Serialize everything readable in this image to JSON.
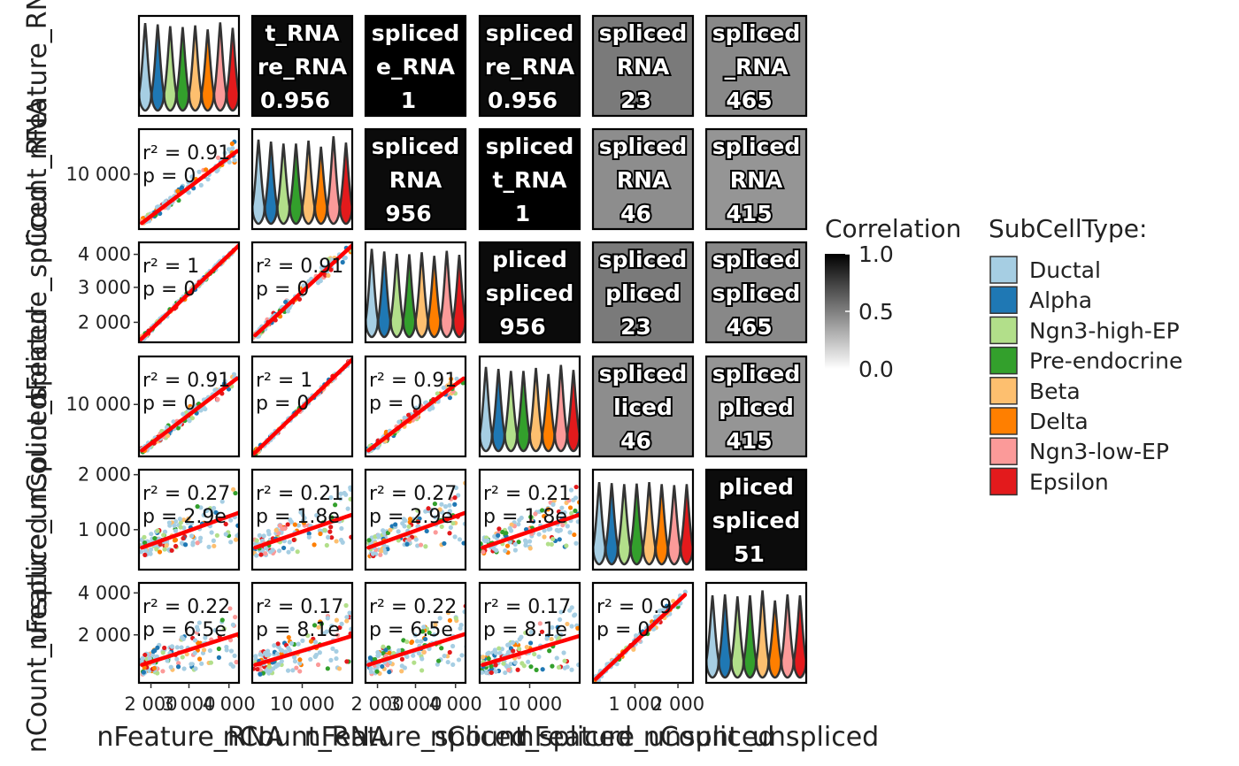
{
  "variables": [
    "nFeature_RNA",
    "nCount_RNA",
    "nFeature_spliced",
    "nCount_spliced",
    "nFeature_unspliced",
    "nCount_unspliced"
  ],
  "x_axis_titles": [
    "nFeature_RNA",
    "nCount_RNA",
    "nFeature_spliced",
    "nCount_spliced",
    "nFeature_unspliced",
    "nCount_unspliced"
  ],
  "y_axis_titles": [
    "nFeature_RNA",
    "nCount_RNA",
    "nFeature_spliced",
    "nCount_spliced",
    "nFeature_unspliced",
    "nCount_unspliced"
  ],
  "y_tick_labels": [
    [],
    [
      "10 000"
    ],
    [
      "4 000",
      "3 000",
      "2 000"
    ],
    [
      "10 000"
    ],
    [
      "2 000",
      "1 000"
    ],
    [
      "4 000",
      "2 000"
    ]
  ],
  "x_tick_labels": [
    [
      "2 000",
      "3 000",
      "4 000"
    ],
    [
      "10 000"
    ],
    [
      "2 000",
      "3 000",
      "4 000"
    ],
    [
      "10 000"
    ],
    [
      "1 000",
      "2 000"
    ],
    []
  ],
  "colors": {
    "fit_line": "#FF0000",
    "violin_outline": "#333333",
    "panel_border": "#000000"
  },
  "legend": {
    "correlation_title": "Correlation",
    "correlation_ticks": [
      "1.0",
      "0.5",
      "0.0"
    ],
    "subcelltype_title": "SubCellType:",
    "groups": [
      {
        "name": "Ductal",
        "color": "#A6CEE3"
      },
      {
        "name": "Alpha",
        "color": "#1F78B4"
      },
      {
        "name": "Ngn3-high-EP",
        "color": "#B2DF8A"
      },
      {
        "name": "Pre-endocrine",
        "color": "#33A02C"
      },
      {
        "name": "Beta",
        "color": "#FDBF6F"
      },
      {
        "name": "Delta",
        "color": "#FF7F00"
      },
      {
        "name": "Ngn3-low-EP",
        "color": "#FB9A99"
      },
      {
        "name": "Epsilon",
        "color": "#E31A1C"
      }
    ]
  },
  "chart_data": {
    "type": "scatter",
    "title": "",
    "correlation_range": [
      0,
      1
    ],
    "y_ranges": [
      [
        0,
        0
      ],
      [
        4000,
        14000
      ],
      [
        1500,
        4200
      ],
      [
        4000,
        14000
      ],
      [
        300,
        2000
      ],
      [
        600,
        4200
      ]
    ],
    "x_ranges": [
      [
        1500,
        4200
      ],
      [
        4000,
        14000
      ],
      [
        1500,
        4200
      ],
      [
        4000,
        14000
      ],
      [
        300,
        2000
      ],
      [
        600,
        4200
      ]
    ],
    "upper_panels": [
      {
        "row": 1,
        "col": 2,
        "fill": 0.956,
        "lines": [
          "t_RNA",
          "re_RNA",
          "0.956"
        ]
      },
      {
        "row": 1,
        "col": 3,
        "fill": 1.0,
        "lines": [
          "spliced",
          "e_RNA",
          "1"
        ]
      },
      {
        "row": 1,
        "col": 4,
        "fill": 0.956,
        "lines": [
          "spliced",
          "re_RNA",
          "0.956"
        ]
      },
      {
        "row": 1,
        "col": 5,
        "fill": 0.523,
        "lines": [
          "spliced",
          "RNA",
          "23"
        ]
      },
      {
        "row": 1,
        "col": 6,
        "fill": 0.465,
        "lines": [
          "spliced",
          "_RNA",
          "465"
        ]
      },
      {
        "row": 2,
        "col": 3,
        "fill": 0.956,
        "lines": [
          "spliced",
          "RNA",
          "956"
        ]
      },
      {
        "row": 2,
        "col": 4,
        "fill": 1.0,
        "lines": [
          "spliced",
          "t_RNA",
          "1"
        ]
      },
      {
        "row": 2,
        "col": 5,
        "fill": 0.446,
        "lines": [
          "spliced",
          "RNA",
          "46"
        ]
      },
      {
        "row": 2,
        "col": 6,
        "fill": 0.415,
        "lines": [
          "spliced",
          "RNA",
          "415"
        ]
      },
      {
        "row": 3,
        "col": 4,
        "fill": 0.956,
        "lines": [
          "pliced",
          "spliced",
          "956"
        ]
      },
      {
        "row": 3,
        "col": 5,
        "fill": 0.523,
        "lines": [
          "spliced",
          "pliced",
          "23"
        ]
      },
      {
        "row": 3,
        "col": 6,
        "fill": 0.465,
        "lines": [
          "spliced",
          "spliced",
          "465"
        ]
      },
      {
        "row": 4,
        "col": 5,
        "fill": 0.446,
        "lines": [
          "spliced",
          "liced",
          "46"
        ]
      },
      {
        "row": 4,
        "col": 6,
        "fill": 0.415,
        "lines": [
          "spliced",
          "pliced",
          "415"
        ]
      },
      {
        "row": 5,
        "col": 6,
        "fill": 0.951,
        "lines": [
          "pliced",
          "spliced",
          "51"
        ]
      }
    ],
    "lower_panels": [
      {
        "row": 2,
        "col": 1,
        "r2": "r² = 0.91",
        "p": "p = 0",
        "fit": [
          [
            0.03,
            0.94
          ],
          [
            0.98,
            0.22
          ]
        ],
        "spread": 0.07,
        "line_label_r": "0.91",
        "p_val": "0"
      },
      {
        "row": 3,
        "col": 1,
        "r2": "r² = 1",
        "p": "p = 0",
        "fit": [
          [
            0.02,
            0.97
          ],
          [
            1.0,
            0.03
          ]
        ],
        "spread": 0.0,
        "line_label_r": "1",
        "p_val": "0"
      },
      {
        "row": 3,
        "col": 2,
        "r2": "r² = 0.91",
        "p": "p = 0",
        "fit": [
          [
            0.03,
            0.93
          ],
          [
            1.0,
            0.03
          ]
        ],
        "spread": 0.06,
        "line_label_r": "0.91",
        "p_val": "0"
      },
      {
        "row": 4,
        "col": 1,
        "r2": "r² = 0.91",
        "p": "p = 0",
        "fit": [
          [
            0.03,
            0.94
          ],
          [
            0.98,
            0.22
          ]
        ],
        "spread": 0.07,
        "line_label_r": "0.91",
        "p_val": "0"
      },
      {
        "row": 4,
        "col": 2,
        "r2": "r² = 1",
        "p": "p = 0",
        "fit": [
          [
            0.02,
            0.97
          ],
          [
            1.0,
            0.03
          ]
        ],
        "spread": 0.0,
        "line_label_r": "1",
        "p_val": "0"
      },
      {
        "row": 4,
        "col": 3,
        "r2": "r² = 0.91",
        "p": "p = 0",
        "fit": [
          [
            0.03,
            0.94
          ],
          [
            0.98,
            0.22
          ]
        ],
        "spread": 0.07,
        "line_label_r": "0.91",
        "p_val": "0"
      },
      {
        "row": 5,
        "col": 1,
        "r2": "r² = 0.27",
        "p": "p = 2.9e",
        "fit": [
          [
            0.03,
            0.78
          ],
          [
            1.0,
            0.43
          ]
        ],
        "spread": 0.22,
        "line_label_r": "0.27",
        "p_val": "2.9e"
      },
      {
        "row": 5,
        "col": 2,
        "r2": "r² = 0.21",
        "p": "p = 1.8e",
        "fit": [
          [
            0.03,
            0.78
          ],
          [
            1.0,
            0.45
          ]
        ],
        "spread": 0.22,
        "line_label_r": "0.21",
        "p_val": "1.8e"
      },
      {
        "row": 5,
        "col": 3,
        "r2": "r² = 0.27",
        "p": "p = 2.9e",
        "fit": [
          [
            0.03,
            0.78
          ],
          [
            1.0,
            0.43
          ]
        ],
        "spread": 0.22,
        "line_label_r": "0.27",
        "p_val": "2.9e"
      },
      {
        "row": 5,
        "col": 4,
        "r2": "r² = 0.21",
        "p": "p = 1.8e",
        "fit": [
          [
            0.03,
            0.78
          ],
          [
            1.0,
            0.45
          ]
        ],
        "spread": 0.22,
        "line_label_r": "0.21",
        "p_val": "1.8e"
      },
      {
        "row": 6,
        "col": 1,
        "r2": "r² = 0.22",
        "p": "p = 6.5e",
        "fit": [
          [
            0.03,
            0.82
          ],
          [
            1.0,
            0.51
          ]
        ],
        "spread": 0.24,
        "line_label_r": "0.22",
        "p_val": "6.5e"
      },
      {
        "row": 6,
        "col": 2,
        "r2": "r² = 0.17",
        "p": "p = 8.1e",
        "fit": [
          [
            0.03,
            0.82
          ],
          [
            1.0,
            0.53
          ]
        ],
        "spread": 0.24,
        "line_label_r": "0.17",
        "p_val": "8.1e"
      },
      {
        "row": 6,
        "col": 3,
        "r2": "r² = 0.22",
        "p": "p = 6.5e",
        "fit": [
          [
            0.03,
            0.82
          ],
          [
            1.0,
            0.51
          ]
        ],
        "spread": 0.24,
        "line_label_r": "0.22",
        "p_val": "6.5e"
      },
      {
        "row": 6,
        "col": 4,
        "r2": "r² = 0.17",
        "p": "p = 8.1e",
        "fit": [
          [
            0.03,
            0.82
          ],
          [
            1.0,
            0.53
          ]
        ],
        "spread": 0.24,
        "line_label_r": "0.17",
        "p_val": "8.1e"
      },
      {
        "row": 6,
        "col": 5,
        "r2": "r² = 0.9",
        "p": "p = 0",
        "fit": [
          [
            0.03,
            0.96
          ],
          [
            0.92,
            0.12
          ]
        ],
        "spread": 0.05,
        "line_label_r": "0.9",
        "p_val": "0"
      }
    ],
    "diagonal_violins": [
      {
        "row": 1,
        "peaks": [
          0.82,
          0.75,
          0.66,
          0.62,
          0.7,
          0.5,
          0.85,
          0.58
        ]
      },
      {
        "row": 2,
        "peaks": [
          0.65,
          0.55,
          0.45,
          0.45,
          0.6,
          0.3,
          0.82,
          0.5
        ]
      },
      {
        "row": 3,
        "peaks": [
          0.85,
          0.72,
          0.6,
          0.58,
          0.68,
          0.5,
          0.75,
          0.55
        ]
      },
      {
        "row": 4,
        "peaks": [
          0.65,
          0.55,
          0.45,
          0.45,
          0.6,
          0.3,
          0.75,
          0.5
        ]
      },
      {
        "row": 5,
        "peaks": [
          0.55,
          0.5,
          0.45,
          0.48,
          0.55,
          0.45,
          0.4,
          0.45
        ]
      },
      {
        "row": 6,
        "peaks": [
          0.55,
          0.6,
          0.5,
          0.55,
          0.8,
          0.3,
          0.6,
          0.55
        ]
      }
    ]
  }
}
